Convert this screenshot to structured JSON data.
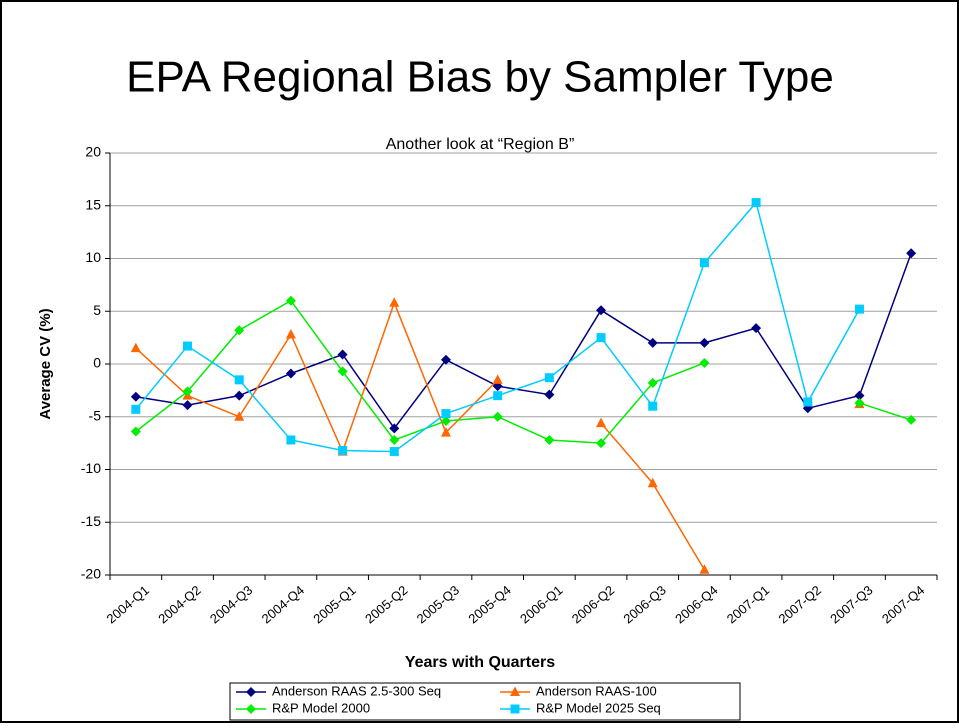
{
  "chart_data": {
    "type": "line",
    "title": "EPA Regional Bias by Sampler Type",
    "subtitle": "Another look at “Region B”",
    "x_label": "Years with Quarters",
    "y_label": "Average CV (%)",
    "categories": [
      "2004-Q1",
      "2004-Q2",
      "2004-Q3",
      "2004-Q4",
      "2005-Q1",
      "2005-Q2",
      "2005-Q3",
      "2005-Q4",
      "2006-Q1",
      "2006-Q2",
      "2006-Q3",
      "2006-Q4",
      "2007-Q1",
      "2007-Q2",
      "2007-Q3",
      "2007-Q4"
    ],
    "ylim": [
      -20,
      20
    ],
    "yticks": [
      -20,
      -15,
      -10,
      -5,
      0,
      5,
      10,
      15,
      20
    ],
    "grid": true,
    "series": [
      {
        "name": "Anderson RAAS 2.5-300 Seq",
        "color": "#000080",
        "marker": "diamond",
        "values": [
          -3.1,
          -3.9,
          -3.0,
          -0.9,
          0.9,
          -6.1,
          0.4,
          -2.1,
          -2.9,
          5.1,
          2.0,
          2.0,
          3.4,
          -4.2,
          -3.0,
          10.5
        ]
      },
      {
        "name": "Anderson RAAS-100",
        "color": "#ff6600",
        "marker": "triangle",
        "values": [
          1.5,
          -3.0,
          -5.0,
          2.8,
          -8.3,
          5.8,
          -6.5,
          -1.5,
          null,
          -5.6,
          -11.3,
          -19.5,
          null,
          null,
          -3.8,
          null
        ]
      },
      {
        "name": "R&P Model 2000",
        "color": "#00ee00",
        "marker": "diamond",
        "values": [
          -6.4,
          -2.6,
          3.2,
          6.0,
          -0.7,
          -7.2,
          -5.4,
          -5.0,
          -7.2,
          -7.5,
          -1.8,
          0.1,
          null,
          null,
          -3.7,
          -5.3
        ]
      },
      {
        "name": "R&P Model 2025 Seq",
        "color": "#00ccff",
        "marker": "square",
        "values": [
          -4.3,
          1.7,
          -1.5,
          -7.2,
          -8.2,
          -8.3,
          -4.7,
          -3.0,
          -1.3,
          2.5,
          -4.0,
          9.6,
          15.3,
          -3.6,
          5.2,
          null
        ]
      }
    ]
  }
}
